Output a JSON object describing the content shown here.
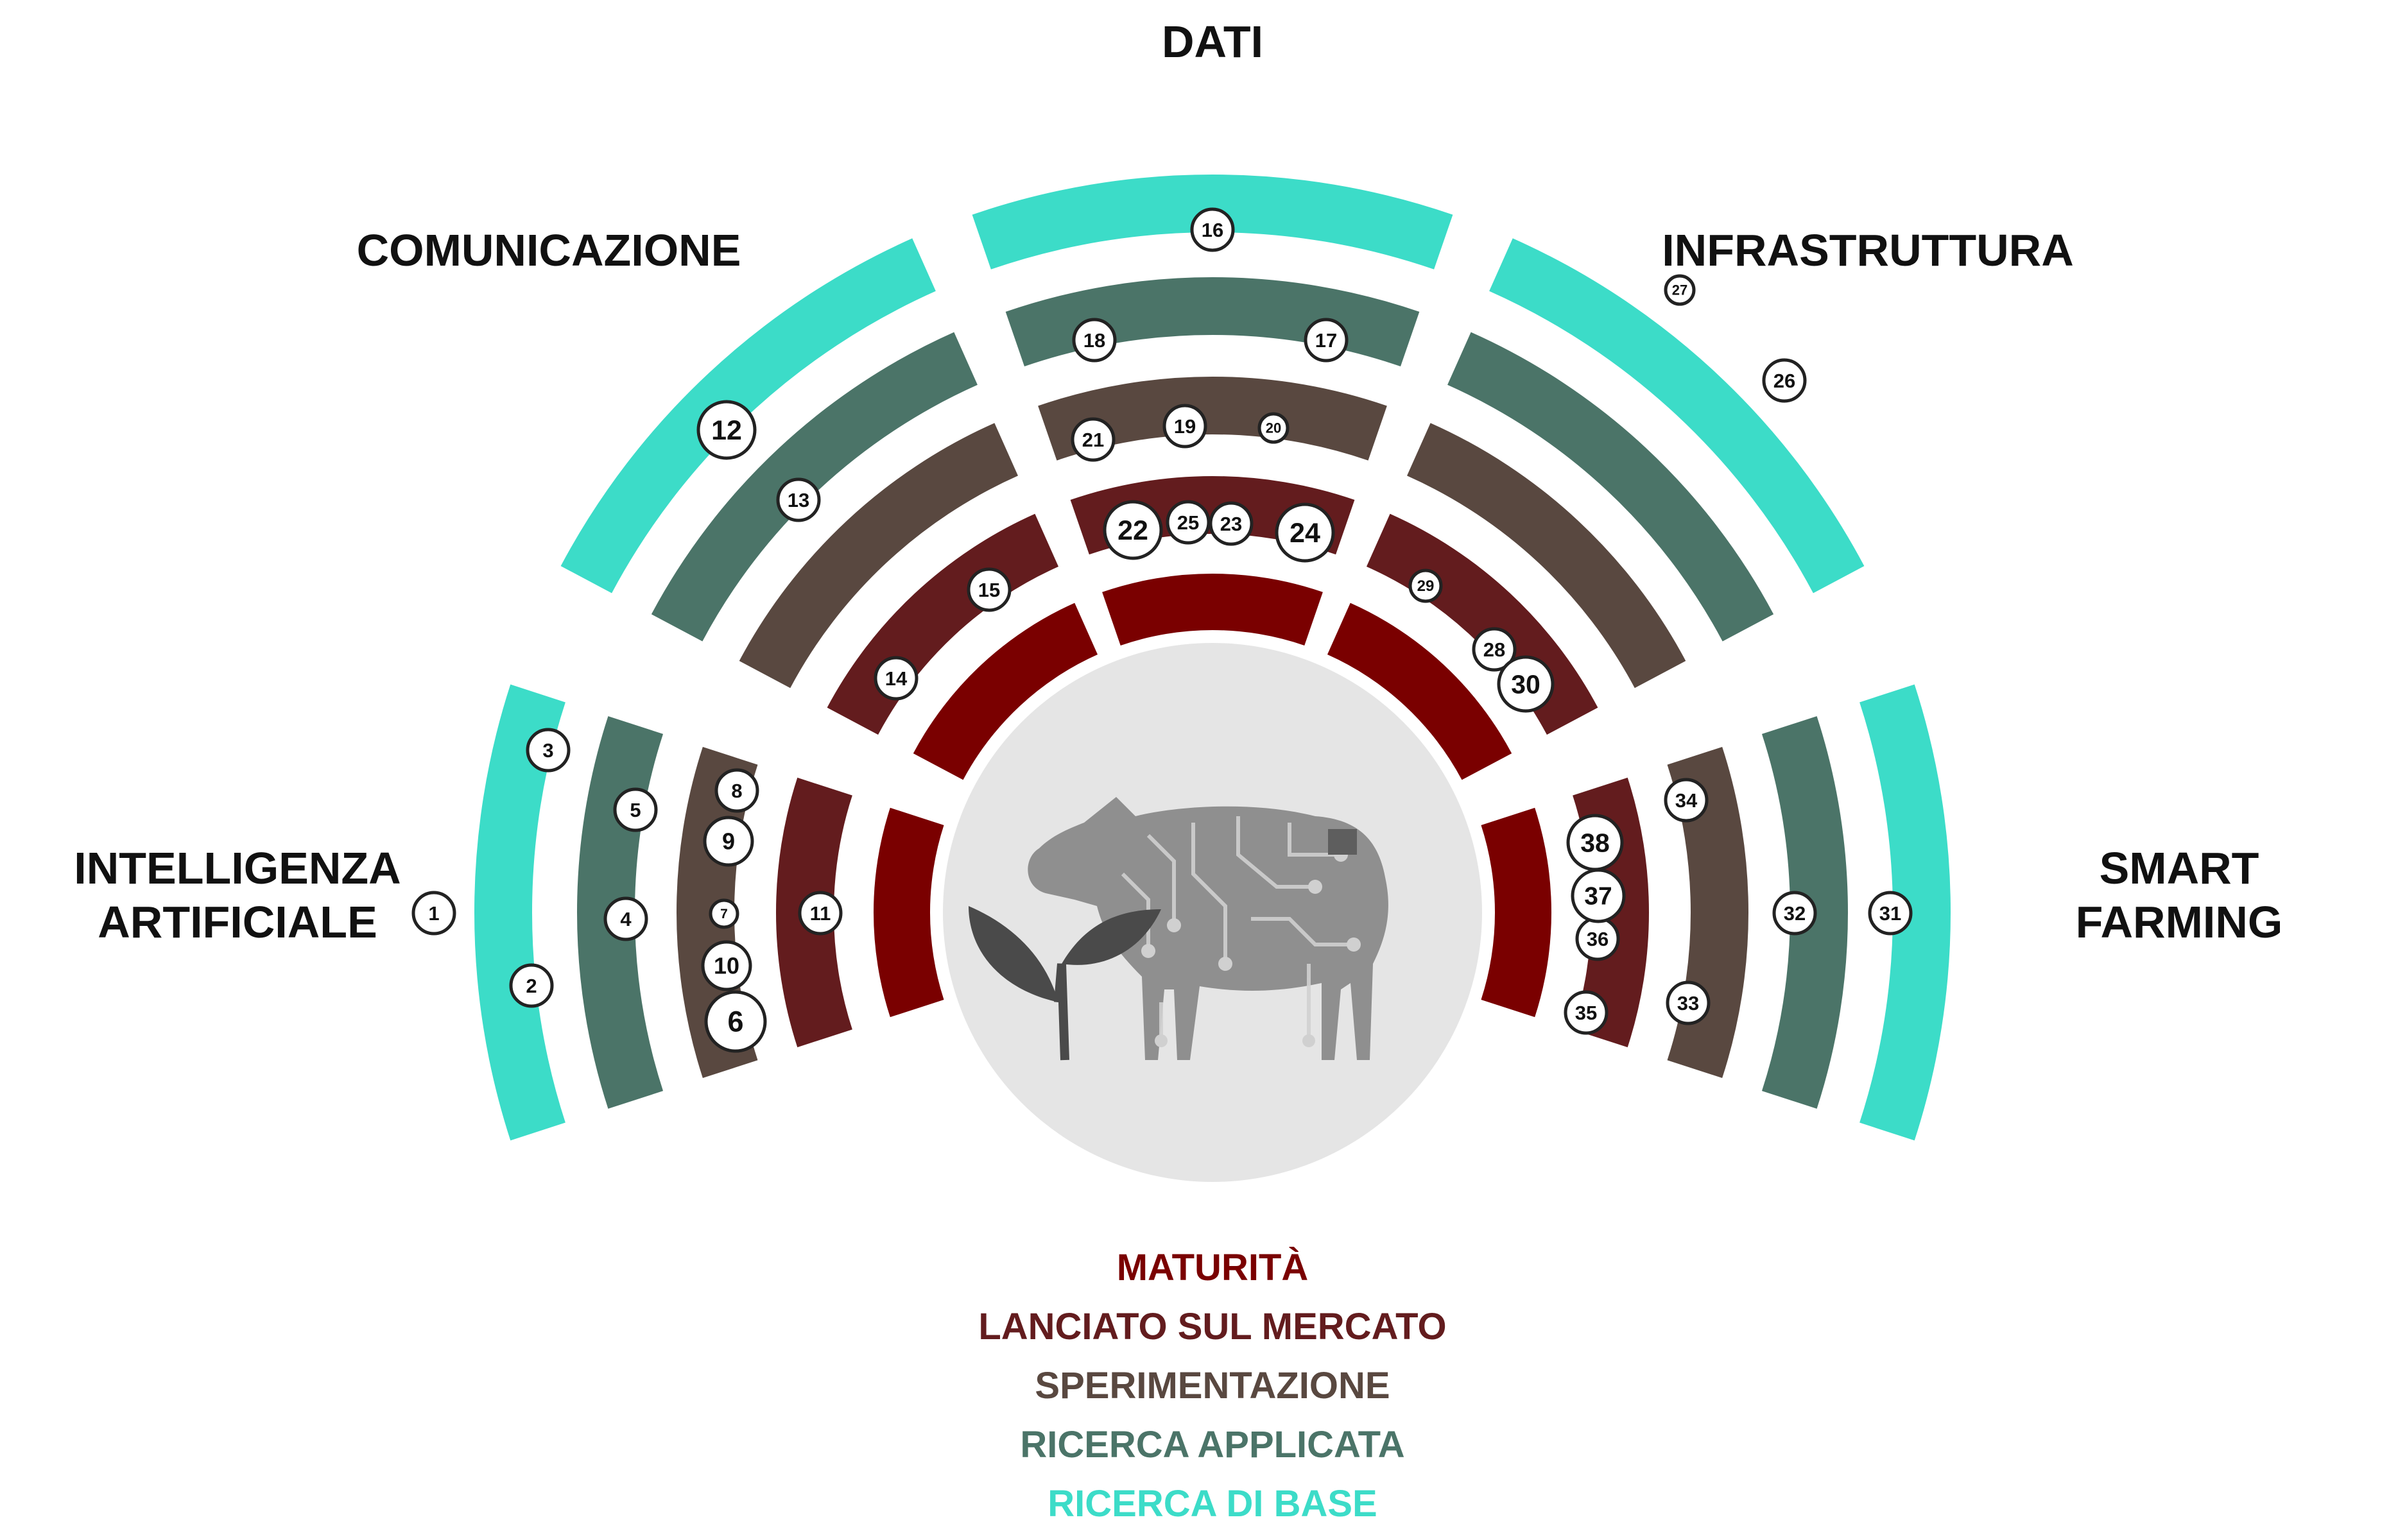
{
  "colors": {
    "ring0": "#7a0000",
    "ring1": "#631c1e",
    "ring2": "#594840",
    "ring3": "#4b7468",
    "ring4": "#3cdcc8",
    "centerDisc": "#e5e5e5",
    "cow": "#8f8f8f",
    "leaf": "#4a4a4a"
  },
  "sectors": [
    {
      "id": "ai",
      "label_lines": [
        "INTELLIGENZA",
        "ARTIFICIALE"
      ]
    },
    {
      "id": "communication",
      "label_lines": [
        "COMUNICAZIONE"
      ]
    },
    {
      "id": "data",
      "label_lines": [
        "DATI"
      ]
    },
    {
      "id": "infrastructure",
      "label_lines": [
        "INFRASTRUTTURA"
      ]
    },
    {
      "id": "smart-farming",
      "label_lines": [
        "SMART",
        "FARMING"
      ]
    }
  ],
  "rings": [
    {
      "label": "MATURITÀ"
    },
    {
      "label": "LANCIATO SUL MERCATO"
    },
    {
      "label": "SPERIMENTAZIONE"
    },
    {
      "label": "RICERCA APPLICATA"
    },
    {
      "label": "RICERCA DI BASE"
    }
  ],
  "technologies": [
    {
      "number": "1",
      "sector": "ai",
      "ring": 4
    },
    {
      "number": "2",
      "sector": "ai",
      "ring": 3
    },
    {
      "number": "3",
      "sector": "ai",
      "ring": 3
    },
    {
      "number": "4",
      "sector": "ai",
      "ring": 2
    },
    {
      "number": "5",
      "sector": "ai",
      "ring": 2
    },
    {
      "number": "6",
      "sector": "ai",
      "ring": 1
    },
    {
      "number": "7",
      "sector": "ai",
      "ring": 1
    },
    {
      "number": "8",
      "sector": "ai",
      "ring": 1
    },
    {
      "number": "9",
      "sector": "ai",
      "ring": 1
    },
    {
      "number": "10",
      "sector": "ai",
      "ring": 1
    },
    {
      "number": "11",
      "sector": "ai",
      "ring": 0
    },
    {
      "number": "12",
      "sector": "communication",
      "ring": 3
    },
    {
      "number": "13",
      "sector": "communication",
      "ring": 2
    },
    {
      "number": "14",
      "sector": "communication",
      "ring": 0
    },
    {
      "number": "15",
      "sector": "communication",
      "ring": 0
    },
    {
      "number": "16",
      "sector": "data",
      "ring": 3
    },
    {
      "number": "17",
      "sector": "data",
      "ring": 2
    },
    {
      "number": "18",
      "sector": "data",
      "ring": 2
    },
    {
      "number": "19",
      "sector": "data",
      "ring": 1
    },
    {
      "number": "20",
      "sector": "data",
      "ring": 1
    },
    {
      "number": "21",
      "sector": "data",
      "ring": 1
    },
    {
      "number": "22",
      "sector": "data",
      "ring": 0
    },
    {
      "number": "23",
      "sector": "data",
      "ring": 0
    },
    {
      "number": "24",
      "sector": "data",
      "ring": 0
    },
    {
      "number": "25",
      "sector": "data",
      "ring": 0
    },
    {
      "number": "26",
      "sector": "infrastructure",
      "ring": 4
    },
    {
      "number": "27",
      "sector": "infrastructure",
      "ring": 4
    },
    {
      "number": "28",
      "sector": "infrastructure",
      "ring": 0
    },
    {
      "number": "29",
      "sector": "infrastructure",
      "ring": 0
    },
    {
      "number": "30",
      "sector": "infrastructure",
      "ring": 0
    },
    {
      "number": "31",
      "sector": "smart-farming",
      "ring": 3
    },
    {
      "number": "32",
      "sector": "smart-farming",
      "ring": 2
    },
    {
      "number": "33",
      "sector": "smart-farming",
      "ring": 1
    },
    {
      "number": "34",
      "sector": "smart-farming",
      "ring": 1
    },
    {
      "number": "35",
      "sector": "smart-farming",
      "ring": 0
    },
    {
      "number": "36",
      "sector": "smart-farming",
      "ring": 0
    },
    {
      "number": "37",
      "sector": "smart-farming",
      "ring": 0
    },
    {
      "number": "38",
      "sector": "smart-farming",
      "ring": 0
    }
  ]
}
